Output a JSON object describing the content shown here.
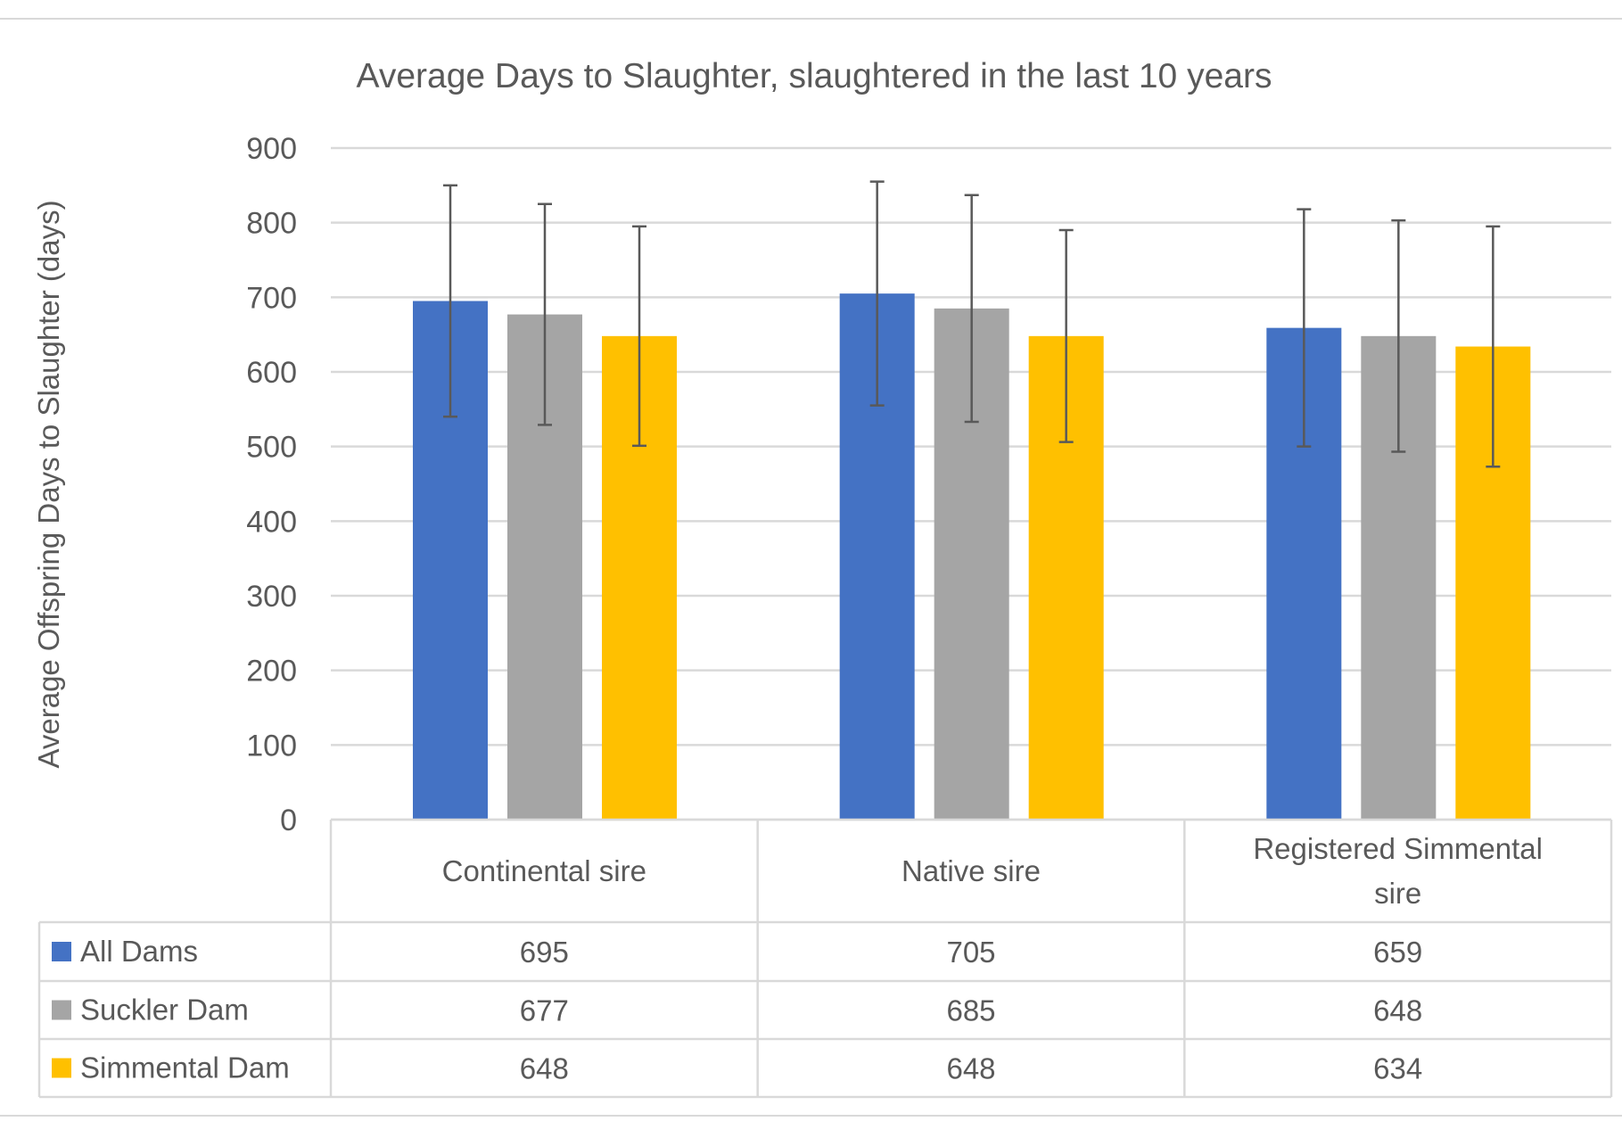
{
  "chart_data": {
    "type": "bar",
    "title": "Average Days to Slaughter, slaughtered in the last 10 years",
    "xlabel": "",
    "ylabel": "Average Offspring Days to Slaughter (days)",
    "ylim": [
      0,
      900
    ],
    "yticks": [
      "0",
      "100",
      "200",
      "300",
      "400",
      "500",
      "600",
      "700",
      "800",
      "900"
    ],
    "grid": true,
    "legend": "data-table-left",
    "categories": [
      "Continental sire",
      "Native sire",
      "Registered Simmental sire"
    ],
    "series": [
      {
        "name": "All Dams",
        "color": "#4472C4",
        "values": [
          695,
          705,
          659
        ],
        "error": [
          155,
          150,
          159
        ]
      },
      {
        "name": "Suckler Dam",
        "color": "#A5A5A5",
        "values": [
          677,
          685,
          648
        ],
        "error": [
          148,
          152,
          155
        ]
      },
      {
        "name": "Simmental Dam",
        "color": "#FFC000",
        "values": [
          648,
          648,
          634
        ],
        "error": [
          147,
          142,
          161
        ]
      }
    ],
    "table": [
      [
        "695",
        "705",
        "659"
      ],
      [
        "677",
        "685",
        "648"
      ],
      [
        "648",
        "648",
        "634"
      ]
    ]
  }
}
